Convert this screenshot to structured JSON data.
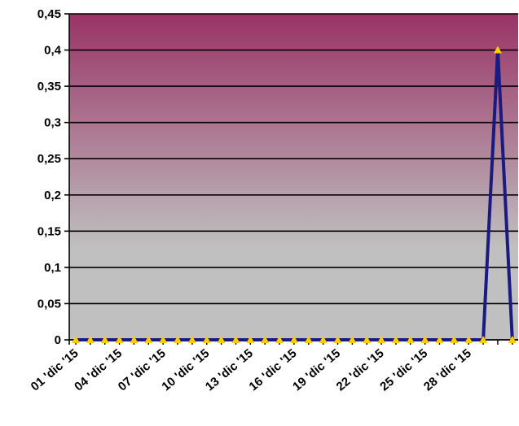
{
  "chart_data": {
    "type": "line",
    "title": "",
    "xlabel": "",
    "ylabel": "",
    "ylim": [
      0,
      0.45
    ],
    "y_ticks": [
      "0",
      "0,05",
      "0,1",
      "0,15",
      "0,2",
      "0,25",
      "0,3",
      "0,35",
      "0,4",
      "0,45"
    ],
    "y_tick_values": [
      0,
      0.05,
      0.1,
      0.15,
      0.2,
      0.25,
      0.3,
      0.35,
      0.4,
      0.45
    ],
    "x_tick_labels": [
      "01 'dic '15",
      "04 'dic '15",
      "07 'dic '15",
      "10 'dic '15",
      "13 'dic '15",
      "16 'dic '15",
      "19 'dic '15",
      "22 'dic '15",
      "25 'dic '15",
      "28 'dic '15"
    ],
    "x": [
      "01 dic 15",
      "02 dic 15",
      "03 dic 15",
      "04 dic 15",
      "05 dic 15",
      "06 dic 15",
      "07 dic 15",
      "08 dic 15",
      "09 dic 15",
      "10 dic 15",
      "11 dic 15",
      "12 dic 15",
      "13 dic 15",
      "14 dic 15",
      "15 dic 15",
      "16 dic 15",
      "17 dic 15",
      "18 dic 15",
      "19 dic 15",
      "20 dic 15",
      "21 dic 15",
      "22 dic 15",
      "23 dic 15",
      "24 dic 15",
      "25 dic 15",
      "26 dic 15",
      "27 dic 15",
      "28 dic 15",
      "29 dic 15",
      "30 dic 15",
      "31 dic 15"
    ],
    "series": [
      {
        "values": [
          0,
          0,
          0,
          0,
          0,
          0,
          0,
          0,
          0,
          0,
          0,
          0,
          0,
          0,
          0,
          0,
          0,
          0,
          0,
          0,
          0,
          0,
          0,
          0,
          0,
          0,
          0,
          0,
          0,
          0.4,
          0
        ]
      }
    ],
    "grid": true,
    "legend": "none",
    "colors": {
      "line": "#1a1a80",
      "marker": "#ffcc00",
      "background_top": "#993366",
      "background_bottom": "#c0c0c0",
      "gridline": "#000000"
    }
  }
}
